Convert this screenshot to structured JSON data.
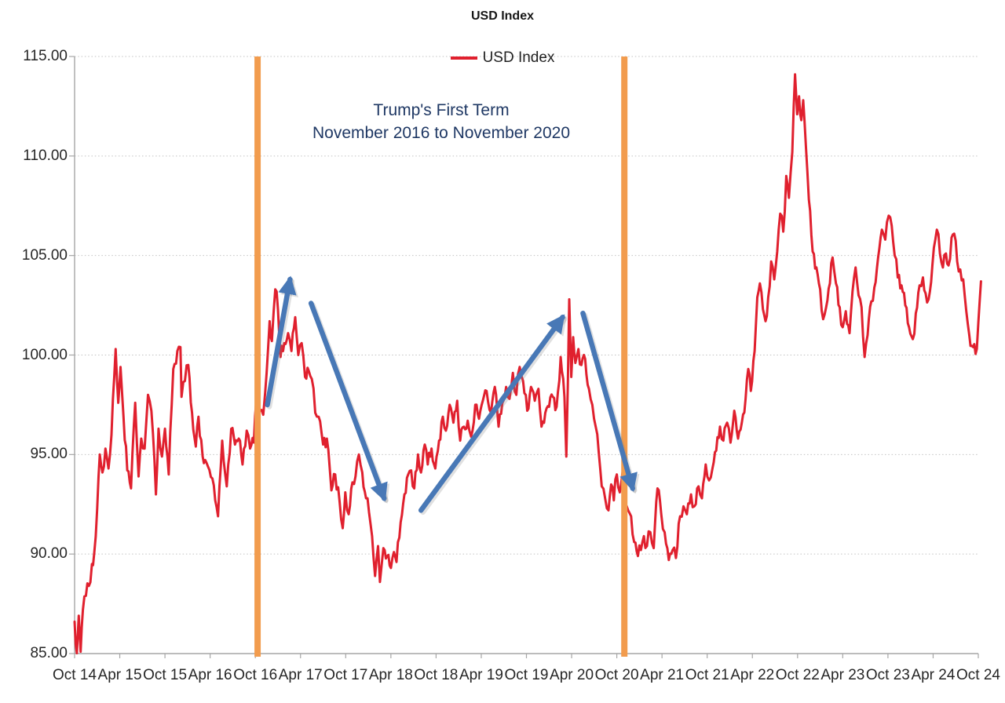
{
  "chart_data": {
    "type": "line",
    "title": "USD Index",
    "legend_label": "USD Index",
    "colors": {
      "series": "#e0202e",
      "term_lines": "#f29c4e",
      "arrows": "#4878b6",
      "note_text": "#1f3864",
      "gridline": "#c2c2c2",
      "axis": "#a6a6a6",
      "tick_text": "#262626"
    },
    "y_axis": {
      "min": 85,
      "max": 115,
      "step": 5,
      "tick_labels": [
        "85.00",
        "90.00",
        "95.00",
        "100.00",
        "105.00",
        "110.00",
        "115.00"
      ]
    },
    "x_axis": {
      "unit": "months since Oct 2014",
      "tick_labels": [
        "Oct 14",
        "Apr 15",
        "Oct 15",
        "Apr 16",
        "Oct 16",
        "Apr 17",
        "Oct 17",
        "Apr 18",
        "Oct 18",
        "Apr 19",
        "Oct 19",
        "Apr 20",
        "Oct 20",
        "Apr 21",
        "Oct 21",
        "Apr 22",
        "Oct 22",
        "Apr 23",
        "Oct 23",
        "Apr 24",
        "Oct 24"
      ]
    },
    "annotations": {
      "note": {
        "lines": [
          "Trump's First Term",
          "November 2016 to November 2020"
        ]
      },
      "vlines": [
        {
          "label": "November 2016",
          "month": 24.3
        },
        {
          "label": "November 2020",
          "month": 73.0
        }
      ],
      "arrows": [
        {
          "name": "post-election-rally-up",
          "from_month": 25.6,
          "from_value": 97.5,
          "to_month": 28.6,
          "to_value": 103.8
        },
        {
          "name": "2017-decline-down",
          "from_month": 31.4,
          "from_value": 102.6,
          "to_month": 41.1,
          "to_value": 92.8
        },
        {
          "name": "2018-2020-rise-up",
          "from_month": 46.0,
          "from_value": 92.2,
          "to_month": 64.8,
          "to_value": 101.9
        },
        {
          "name": "2020-decline-down",
          "from_month": 67.5,
          "from_value": 102.1,
          "to_month": 74.1,
          "to_value": 93.3
        }
      ]
    },
    "series": [
      {
        "name": "USD Index",
        "points": [
          [
            0,
            86.6
          ],
          [
            0.3,
            85.0
          ],
          [
            0.55,
            86.9
          ],
          [
            0.8,
            85.1
          ],
          [
            1.1,
            87.2
          ],
          [
            1.5,
            87.9
          ],
          [
            1.9,
            88.4
          ],
          [
            2.3,
            89.5
          ],
          [
            2.6,
            90.0
          ],
          [
            3.0,
            92.3
          ],
          [
            3.35,
            95.0
          ],
          [
            3.7,
            94.1
          ],
          [
            4.1,
            95.3
          ],
          [
            4.5,
            94.3
          ],
          [
            4.9,
            96.0
          ],
          [
            5.45,
            100.3
          ],
          [
            5.8,
            97.6
          ],
          [
            6.1,
            99.4
          ],
          [
            6.5,
            96.9
          ],
          [
            7.0,
            94.2
          ],
          [
            7.5,
            93.3
          ],
          [
            8.05,
            97.6
          ],
          [
            8.5,
            93.9
          ],
          [
            8.85,
            95.8
          ],
          [
            9.3,
            95.3
          ],
          [
            9.75,
            98.0
          ],
          [
            10.2,
            97.2
          ],
          [
            10.8,
            93.0
          ],
          [
            11.15,
            96.3
          ],
          [
            11.6,
            94.9
          ],
          [
            12.0,
            96.3
          ],
          [
            12.5,
            94.0
          ],
          [
            13.1,
            99.3
          ],
          [
            13.65,
            100.2
          ],
          [
            14.05,
            100.4
          ],
          [
            14.2,
            97.9
          ],
          [
            14.65,
            98.7
          ],
          [
            15.1,
            99.5
          ],
          [
            15.6,
            97.1
          ],
          [
            16.1,
            95.4
          ],
          [
            16.45,
            96.9
          ],
          [
            17.0,
            94.9
          ],
          [
            17.5,
            94.6
          ],
          [
            18.3,
            93.8
          ],
          [
            19.05,
            91.9
          ],
          [
            19.6,
            95.7
          ],
          [
            20.2,
            93.4
          ],
          [
            20.8,
            96.3
          ],
          [
            21.3,
            95.5
          ],
          [
            21.8,
            95.8
          ],
          [
            22.3,
            94.5
          ],
          [
            22.85,
            96.2
          ],
          [
            23.3,
            95.3
          ],
          [
            23.8,
            95.6
          ],
          [
            24.3,
            98.8
          ],
          [
            24.6,
            97.2
          ],
          [
            25.05,
            97.0
          ],
          [
            25.3,
            98.1
          ],
          [
            25.9,
            101.7
          ],
          [
            26.2,
            100.7
          ],
          [
            26.65,
            103.3
          ],
          [
            27.0,
            102.3
          ],
          [
            27.35,
            99.9
          ],
          [
            27.85,
            100.6
          ],
          [
            28.35,
            101.1
          ],
          [
            28.8,
            100.2
          ],
          [
            29.3,
            101.9
          ],
          [
            29.7,
            100.0
          ],
          [
            30.15,
            100.6
          ],
          [
            30.6,
            98.9
          ],
          [
            31.1,
            99.2
          ],
          [
            31.5,
            98.8
          ],
          [
            31.95,
            97.1
          ],
          [
            32.4,
            96.9
          ],
          [
            33.0,
            95.5
          ],
          [
            33.5,
            95.8
          ],
          [
            34.1,
            93.2
          ],
          [
            34.6,
            94.0
          ],
          [
            35.2,
            92.6
          ],
          [
            35.6,
            91.3
          ],
          [
            35.95,
            93.1
          ],
          [
            36.4,
            92.0
          ],
          [
            36.9,
            93.6
          ],
          [
            37.3,
            93.9
          ],
          [
            37.75,
            95.0
          ],
          [
            38.2,
            94.1
          ],
          [
            38.7,
            92.8
          ],
          [
            39.1,
            92.1
          ],
          [
            39.5,
            90.9
          ],
          [
            39.9,
            88.9
          ],
          [
            40.3,
            90.4
          ],
          [
            40.55,
            88.6
          ],
          [
            41.0,
            90.3
          ],
          [
            41.5,
            89.9
          ],
          [
            42.0,
            89.3
          ],
          [
            42.4,
            90.1
          ],
          [
            42.75,
            89.6
          ],
          [
            43.3,
            91.6
          ],
          [
            43.8,
            93.0
          ],
          [
            44.3,
            94.0
          ],
          [
            44.7,
            94.2
          ],
          [
            45.1,
            93.3
          ],
          [
            45.6,
            95.0
          ],
          [
            46.0,
            94.1
          ],
          [
            46.5,
            95.5
          ],
          [
            46.9,
            94.5
          ],
          [
            47.4,
            95.3
          ],
          [
            47.9,
            94.3
          ],
          [
            48.4,
            95.7
          ],
          [
            48.9,
            96.9
          ],
          [
            49.3,
            96.2
          ],
          [
            49.8,
            97.5
          ],
          [
            50.3,
            96.6
          ],
          [
            50.8,
            97.7
          ],
          [
            51.2,
            95.7
          ],
          [
            51.7,
            96.4
          ],
          [
            52.2,
            96.7
          ],
          [
            52.65,
            95.9
          ],
          [
            53.2,
            97.5
          ],
          [
            53.7,
            96.8
          ],
          [
            54.2,
            97.7
          ],
          [
            54.7,
            98.2
          ],
          [
            55.3,
            97.1
          ],
          [
            55.8,
            98.4
          ],
          [
            56.3,
            96.4
          ],
          [
            56.8,
            97.6
          ],
          [
            57.3,
            98.4
          ],
          [
            57.75,
            97.8
          ],
          [
            58.2,
            99.1
          ],
          [
            58.65,
            98.0
          ],
          [
            59.1,
            99.4
          ],
          [
            59.55,
            98.7
          ],
          [
            60.1,
            97.2
          ],
          [
            60.6,
            98.4
          ],
          [
            61.1,
            97.7
          ],
          [
            61.6,
            98.3
          ],
          [
            62.0,
            96.4
          ],
          [
            62.5,
            97.1
          ],
          [
            63.0,
            97.4
          ],
          [
            63.5,
            97.9
          ],
          [
            64.0,
            97.4
          ],
          [
            64.55,
            99.9
          ],
          [
            65.05,
            97.9
          ],
          [
            65.3,
            94.9
          ],
          [
            65.68,
            102.8
          ],
          [
            65.95,
            98.9
          ],
          [
            66.2,
            100.9
          ],
          [
            66.5,
            99.6
          ],
          [
            66.9,
            100.3
          ],
          [
            67.3,
            99.5
          ],
          [
            67.8,
            99.8
          ],
          [
            68.3,
            98.3
          ],
          [
            68.75,
            97.5
          ],
          [
            69.2,
            96.4
          ],
          [
            69.6,
            95.1
          ],
          [
            70.0,
            93.4
          ],
          [
            70.45,
            92.8
          ],
          [
            70.9,
            92.2
          ],
          [
            71.25,
            93.5
          ],
          [
            71.6,
            92.7
          ],
          [
            72.0,
            94.0
          ],
          [
            72.4,
            93.1
          ],
          [
            72.75,
            94.1
          ],
          [
            73.1,
            92.5
          ],
          [
            73.5,
            92.2
          ],
          [
            73.9,
            91.9
          ],
          [
            74.3,
            90.6
          ],
          [
            74.8,
            89.9
          ],
          [
            75.2,
            90.2
          ],
          [
            75.6,
            90.9
          ],
          [
            76.0,
            90.4
          ],
          [
            76.45,
            91.1
          ],
          [
            76.9,
            90.3
          ],
          [
            77.4,
            93.3
          ],
          [
            77.9,
            92.0
          ],
          [
            78.35,
            91.1
          ],
          [
            78.9,
            89.7
          ],
          [
            79.4,
            90.2
          ],
          [
            79.85,
            89.8
          ],
          [
            80.4,
            91.9
          ],
          [
            80.85,
            92.4
          ],
          [
            81.3,
            92.0
          ],
          [
            81.85,
            93.0
          ],
          [
            82.3,
            92.4
          ],
          [
            82.85,
            93.4
          ],
          [
            83.3,
            92.8
          ],
          [
            83.8,
            94.5
          ],
          [
            84.25,
            93.7
          ],
          [
            84.7,
            94.3
          ],
          [
            85.2,
            95.2
          ],
          [
            85.7,
            96.4
          ],
          [
            86.15,
            95.7
          ],
          [
            86.65,
            96.6
          ],
          [
            87.1,
            95.6
          ],
          [
            87.6,
            97.2
          ],
          [
            88.1,
            95.8
          ],
          [
            88.6,
            96.6
          ],
          [
            89.1,
            97.8
          ],
          [
            89.45,
            99.3
          ],
          [
            89.8,
            98.2
          ],
          [
            90.3,
            100.2
          ],
          [
            90.65,
            102.9
          ],
          [
            91.0,
            103.6
          ],
          [
            91.4,
            102.3
          ],
          [
            91.75,
            101.7
          ],
          [
            92.1,
            102.9
          ],
          [
            92.5,
            104.7
          ],
          [
            92.9,
            103.8
          ],
          [
            93.3,
            105.2
          ],
          [
            93.7,
            107.1
          ],
          [
            94.1,
            106.2
          ],
          [
            94.5,
            109.0
          ],
          [
            94.85,
            107.9
          ],
          [
            95.3,
            110.2
          ],
          [
            95.67,
            114.1
          ],
          [
            95.95,
            112.1
          ],
          [
            96.2,
            113.0
          ],
          [
            96.5,
            111.8
          ],
          [
            96.75,
            112.8
          ],
          [
            97.1,
            110.5
          ],
          [
            97.5,
            107.8
          ],
          [
            98.0,
            105.2
          ],
          [
            98.5,
            104.4
          ],
          [
            99.0,
            103.3
          ],
          [
            99.4,
            101.8
          ],
          [
            99.8,
            102.4
          ],
          [
            100.3,
            103.6
          ],
          [
            100.65,
            104.9
          ],
          [
            101.1,
            103.6
          ],
          [
            101.6,
            102.4
          ],
          [
            102.0,
            101.4
          ],
          [
            102.4,
            102.2
          ],
          [
            102.9,
            101.1
          ],
          [
            103.3,
            103.2
          ],
          [
            103.7,
            104.4
          ],
          [
            104.1,
            103.0
          ],
          [
            104.5,
            102.4
          ],
          [
            104.9,
            99.9
          ],
          [
            105.3,
            101.0
          ],
          [
            105.8,
            102.7
          ],
          [
            106.2,
            103.4
          ],
          [
            106.7,
            104.9
          ],
          [
            107.2,
            106.3
          ],
          [
            107.65,
            105.8
          ],
          [
            108.1,
            107.0
          ],
          [
            108.5,
            106.5
          ],
          [
            108.9,
            105.0
          ],
          [
            109.3,
            103.9
          ],
          [
            109.8,
            103.5
          ],
          [
            110.3,
            102.5
          ],
          [
            110.8,
            101.4
          ],
          [
            111.3,
            100.8
          ],
          [
            111.7,
            102.1
          ],
          [
            112.2,
            103.5
          ],
          [
            112.65,
            103.9
          ],
          [
            113.0,
            103.1
          ],
          [
            113.4,
            102.8
          ],
          [
            113.9,
            104.5
          ],
          [
            114.5,
            106.3
          ],
          [
            114.9,
            105.1
          ],
          [
            115.3,
            104.4
          ],
          [
            115.7,
            105.1
          ],
          [
            116.05,
            104.5
          ],
          [
            116.45,
            105.9
          ],
          [
            116.8,
            106.1
          ],
          [
            117.2,
            104.7
          ],
          [
            117.6,
            104.3
          ],
          [
            118.0,
            103.8
          ],
          [
            118.4,
            102.2
          ],
          [
            118.8,
            101.0
          ],
          [
            119.3,
            100.4
          ],
          [
            119.8,
            100.3
          ],
          [
            120.0,
            101.6
          ],
          [
            120.2,
            102.8
          ],
          [
            120.35,
            103.7
          ]
        ]
      }
    ]
  }
}
